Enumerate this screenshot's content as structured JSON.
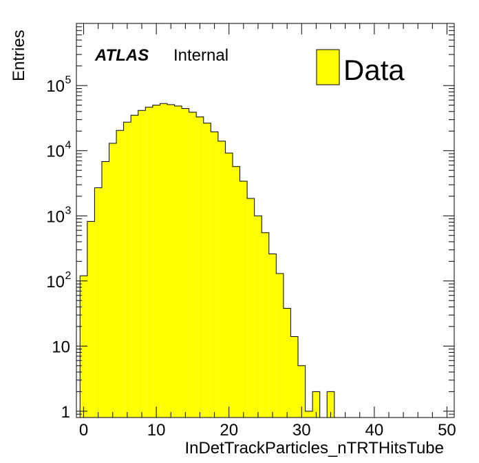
{
  "chart_data": {
    "type": "bar",
    "title": "",
    "xlabel": "InDetTrackParticles_nTRTHitsTube",
    "ylabel": "Entries",
    "xlim": [
      -1,
      51
    ],
    "ylim": [
      0.8,
      900000
    ],
    "yscale": "log",
    "grid": false,
    "legend_position": "top-right",
    "experiment_label": "ATLAS",
    "status_label": "Internal",
    "x_ticks": [
      0,
      10,
      20,
      30,
      40,
      50
    ],
    "x_tick_labels": [
      "0",
      "10",
      "20",
      "30",
      "40",
      "50"
    ],
    "y_ticks": [
      1,
      10,
      100,
      1000,
      10000,
      100000
    ],
    "y_tick_labels": [
      {
        "base": "1",
        "exp": ""
      },
      {
        "base": "10",
        "exp": ""
      },
      {
        "base": "10",
        "exp": "2"
      },
      {
        "base": "10",
        "exp": "3"
      },
      {
        "base": "10",
        "exp": "4"
      },
      {
        "base": "10",
        "exp": "5"
      }
    ],
    "series": [
      {
        "name": "Data",
        "color": "#ffff00",
        "bin_edges": [
          -0.5,
          0.5,
          1.5,
          2.5,
          3.5,
          4.5,
          5.5,
          6.5,
          7.5,
          8.5,
          9.5,
          10.5,
          11.5,
          12.5,
          13.5,
          14.5,
          15.5,
          16.5,
          17.5,
          18.5,
          19.5,
          20.5,
          21.5,
          22.5,
          23.5,
          24.5,
          25.5,
          26.5,
          27.5,
          28.5,
          29.5,
          30.5,
          31.5,
          32.5,
          33.5,
          34.5
        ],
        "values": [
          120,
          820,
          2700,
          6800,
          13000,
          20500,
          27500,
          35000,
          41500,
          46500,
          50000,
          53000,
          51000,
          48500,
          44500,
          39000,
          33000,
          26500,
          19500,
          14000,
          9200,
          5700,
          3400,
          1850,
          1000,
          550,
          260,
          130,
          38,
          14,
          5,
          1,
          2,
          0,
          2
        ]
      }
    ]
  }
}
